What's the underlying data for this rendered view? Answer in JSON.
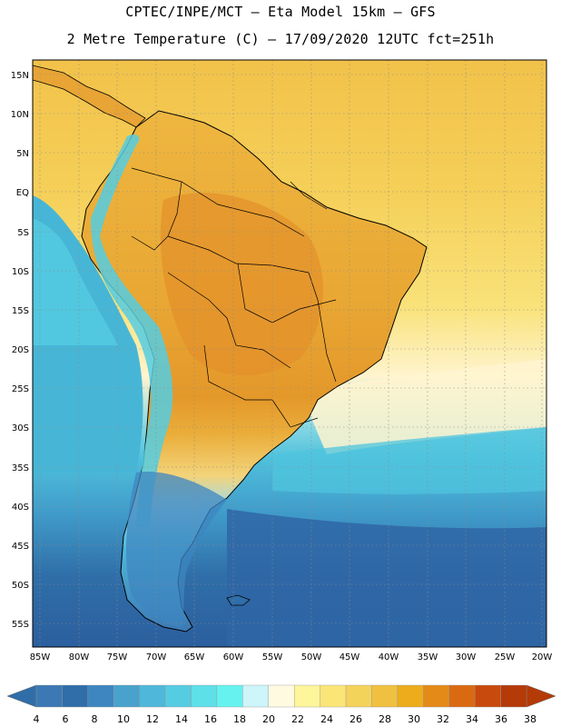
{
  "header": {
    "line1": "CPTEC/INPE/MCT –  Eta Model 15km – GFS",
    "line2": "2 Metre Temperature (C) – 17/09/2020 12UTC fct=251h"
  },
  "axes": {
    "lat_labels": [
      "15N",
      "10N",
      "5N",
      "EQ",
      "5S",
      "10S",
      "15S",
      "20S",
      "25S",
      "30S",
      "35S",
      "40S",
      "45S",
      "50S",
      "55S"
    ],
    "lon_labels": [
      "85W",
      "80W",
      "75W",
      "70W",
      "65W",
      "60W",
      "55W",
      "50W",
      "45W",
      "40W",
      "35W",
      "30W",
      "25W",
      "20W"
    ]
  },
  "colorbar": {
    "ticks": [
      "4",
      "6",
      "8",
      "10",
      "12",
      "14",
      "16",
      "18",
      "20",
      "22",
      "24",
      "26",
      "28",
      "30",
      "32",
      "34",
      "36",
      "38"
    ],
    "colors": [
      "#3c78b4",
      "#2f6ea8",
      "#3e86c0",
      "#48a2cc",
      "#4fb8da",
      "#55cce2",
      "#5fdfe8",
      "#66f3f0",
      "#cdf5fa",
      "#fffae0",
      "#fff59a",
      "#fbe577",
      "#f4d35a",
      "#f0c040",
      "#ecac1c",
      "#e48a18",
      "#d96a12",
      "#c84a0c",
      "#b43a08"
    ],
    "low_color": "#2f6ea8",
    "high_color": "#b43a08"
  },
  "colors": {
    "ocean_south": "#2f63a6",
    "ocean_mid": "#3fa6d0",
    "ocean_cyan": "#55cde0",
    "ocean_warm": "#f9e27a",
    "ocean_pale": "#fff4cf",
    "land_hot": "#e69a2a",
    "land_warm": "#eeb640"
  }
}
